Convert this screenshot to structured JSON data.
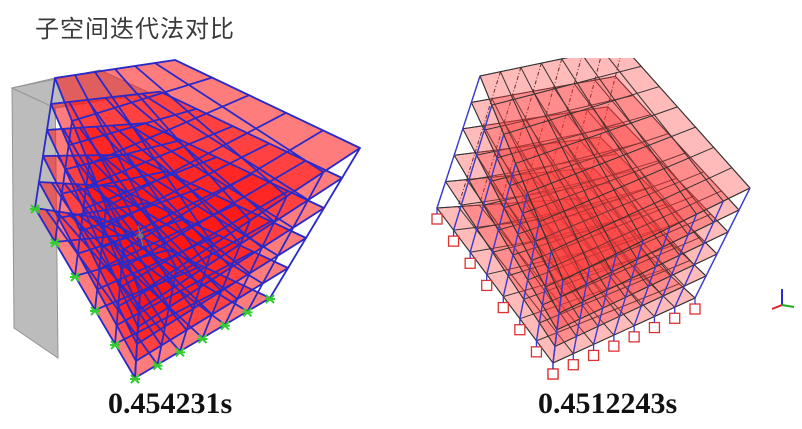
{
  "title": "子空间迭代法对比",
  "left": {
    "time": "0.454231s"
  },
  "right": {
    "time": "0.4512243s"
  },
  "colors": {
    "floor_fill": "#ff1a1a",
    "floor_fill_light": "#f26a6a",
    "frame_blue": "#2a2ac8",
    "ghost_gray": "#9b9b9b",
    "support_green": "#33cc33",
    "support_red": "#e03030",
    "dashed_black": "#222222"
  },
  "icons": [
    "axis-triad-icon",
    "fixed-support-icon",
    "pin-support-icon"
  ]
}
